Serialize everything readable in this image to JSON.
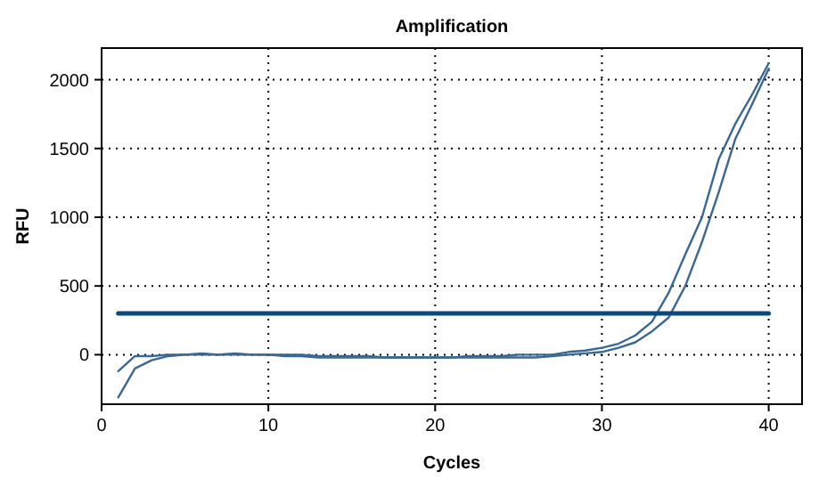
{
  "chart_data": {
    "type": "line",
    "title": "Amplification",
    "xlabel": "Cycles",
    "ylabel": "RFU",
    "xlim": [
      0,
      42
    ],
    "xticks": [
      0,
      10,
      20,
      30,
      40
    ],
    "ylim": [
      -360,
      2230
    ],
    "yticks": [
      0,
      500,
      1000,
      1500,
      2000
    ],
    "grid": true,
    "marker": "none",
    "line_style": "solid",
    "x": [
      1,
      2,
      3,
      4,
      5,
      6,
      7,
      8,
      9,
      10,
      11,
      12,
      13,
      14,
      15,
      16,
      17,
      18,
      19,
      20,
      21,
      22,
      23,
      24,
      25,
      26,
      27,
      28,
      29,
      30,
      31,
      32,
      33,
      34,
      35,
      36,
      37,
      38,
      39,
      40
    ],
    "series": [
      {
        "color": "#3a6794",
        "values": [
          -120,
          -10,
          -10,
          0,
          0,
          10,
          0,
          10,
          0,
          0,
          0,
          0,
          -10,
          -10,
          -10,
          -10,
          -20,
          -20,
          -20,
          -20,
          -20,
          -10,
          -10,
          -10,
          0,
          0,
          0,
          20,
          30,
          50,
          80,
          140,
          240,
          450,
          730,
          1000,
          1420,
          1680,
          1890,
          2120
        ]
      },
      {
        "color": "#3a6794",
        "values": [
          -310,
          -100,
          -40,
          -10,
          0,
          0,
          0,
          0,
          0,
          0,
          -10,
          -10,
          -20,
          -20,
          -20,
          -20,
          -20,
          -20,
          -20,
          -20,
          -20,
          -20,
          -20,
          -20,
          -20,
          -20,
          -10,
          0,
          10,
          20,
          50,
          90,
          170,
          270,
          500,
          820,
          1180,
          1570,
          1820,
          2080
        ]
      },
      {
        "color": "#0b4a80",
        "x": [
          1,
          40
        ],
        "values": [
          300,
          300
        ]
      }
    ]
  }
}
